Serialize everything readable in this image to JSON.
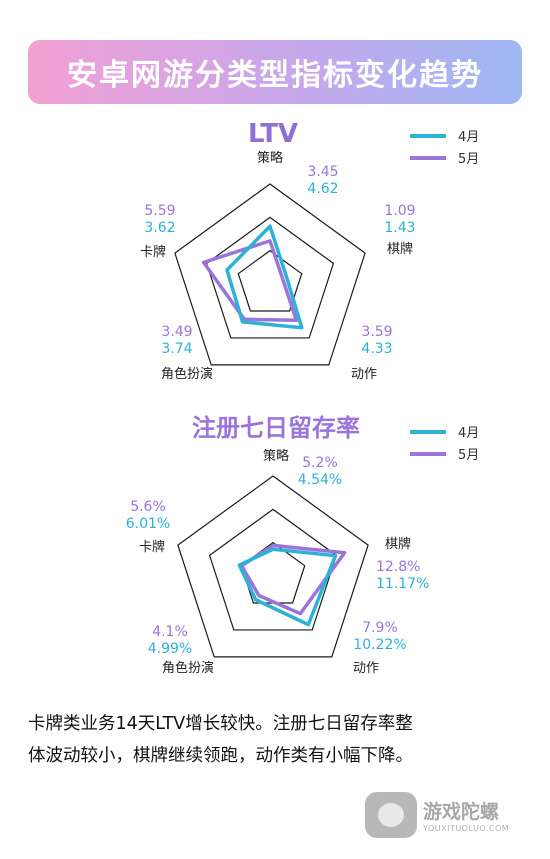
{
  "page_title": "安卓网游分类型指标变化趋势",
  "legend": [
    {
      "label": "4月",
      "color": "#2bb2d6"
    },
    {
      "label": "5月",
      "color": "#9b74db"
    }
  ],
  "chart_data": [
    {
      "type": "radar",
      "title": "LTV",
      "categories": [
        "策略",
        "棋牌",
        "动作",
        "角色扮演",
        "卡牌"
      ],
      "series": [
        {
          "name": "4月",
          "color": "#2bb2d6",
          "values": [
            4.62,
            1.43,
            4.33,
            3.74,
            3.62
          ],
          "labels": [
            "4.62",
            "1.43",
            "4.33",
            "3.74",
            "3.62"
          ]
        },
        {
          "name": "5月",
          "color": "#9b74db",
          "values": [
            3.45,
            1.09,
            3.59,
            3.49,
            5.59
          ],
          "labels": [
            "3.45",
            "1.09",
            "3.59",
            "3.49",
            "5.59"
          ]
        }
      ],
      "rlim": [
        0,
        8
      ]
    },
    {
      "type": "radar",
      "title": "注册七日留存率",
      "categories": [
        "策略",
        "棋牌",
        "动作",
        "角色扮演",
        "卡牌"
      ],
      "series": [
        {
          "name": "4月",
          "color": "#2bb2d6",
          "values": [
            4.54,
            11.17,
            10.22,
            4.99,
            6.01
          ],
          "labels": [
            "4.54%",
            "11.17%",
            "10.22%",
            "4.99%",
            "6.01%"
          ]
        },
        {
          "name": "5月",
          "color": "#9b74db",
          "values": [
            5.2,
            12.8,
            7.9,
            4.1,
            5.6
          ],
          "labels": [
            "5.2%",
            "12.8%",
            "7.9%",
            "4.1%",
            "5.6%"
          ]
        }
      ],
      "rlim": [
        0,
        17
      ]
    }
  ],
  "summary": {
    "line1": "卡牌类业务14天LTV增长较快。注册七日留存率整",
    "line2": "体波动较小，棋牌继续领跑，动作类有小幅下降。"
  },
  "watermark": {
    "cn": "游戏陀螺",
    "en": "YOUXITUOLUO.COM"
  }
}
